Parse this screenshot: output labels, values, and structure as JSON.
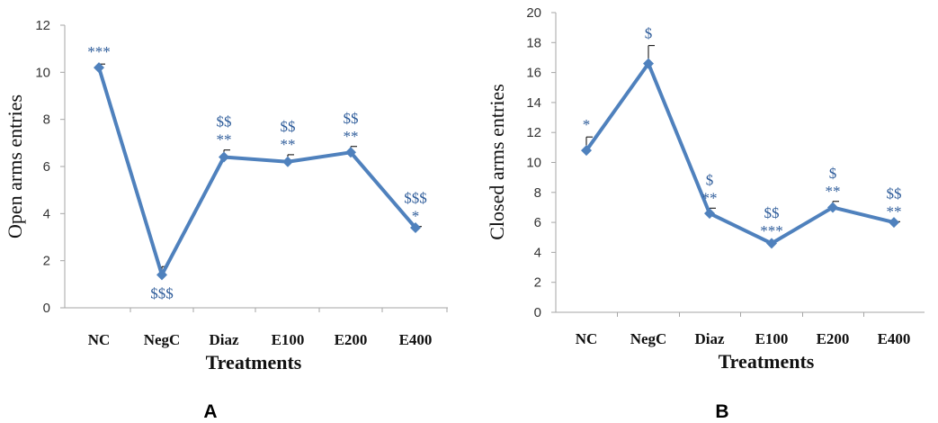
{
  "colors": {
    "series": "#4F81BD",
    "axis": "#A6A6A6",
    "annotation": "#2E5C9A"
  },
  "chart_data": [
    {
      "type": "line",
      "panel_label": "A",
      "xlabel": "Treatments",
      "ylabel": "Open arms entries",
      "categories": [
        "NC",
        "NegC",
        "Diaz",
        "E100",
        "E200",
        "E400"
      ],
      "values": [
        10.2,
        1.4,
        6.4,
        6.2,
        6.6,
        3.4
      ],
      "errors": [
        0.15,
        0.35,
        0.3,
        0.3,
        0.25,
        0.05
      ],
      "annotations_top": [
        "***",
        "",
        "$$",
        "$$",
        "$$",
        "$$$"
      ],
      "annotations_bottom": [
        "",
        "$$$",
        "**",
        "**",
        "**",
        "*"
      ],
      "ylim": [
        0,
        12
      ],
      "yticks": [
        "0",
        "2",
        "4",
        "6",
        "8",
        "10",
        "12"
      ],
      "grid": false
    },
    {
      "type": "line",
      "panel_label": "B",
      "xlabel": "Treatments",
      "ylabel": "Closed arms entries",
      "categories": [
        "NC",
        "NegC",
        "Diaz",
        "E100",
        "E200",
        "E400"
      ],
      "values": [
        10.8,
        16.6,
        6.6,
        4.6,
        7.0,
        6.0
      ],
      "errors": [
        0.9,
        1.2,
        0.35,
        0.15,
        0.4,
        0.05
      ],
      "annotations_top": [
        "*",
        "$",
        "$",
        "$$",
        "$",
        "$$"
      ],
      "annotations_bottom": [
        "",
        "",
        "**",
        "***",
        "**",
        "**"
      ],
      "ylim": [
        0,
        20
      ],
      "yticks": [
        "0",
        "2",
        "4",
        "6",
        "8",
        "10",
        "12",
        "14",
        "16",
        "18",
        "20"
      ],
      "grid": false
    }
  ]
}
